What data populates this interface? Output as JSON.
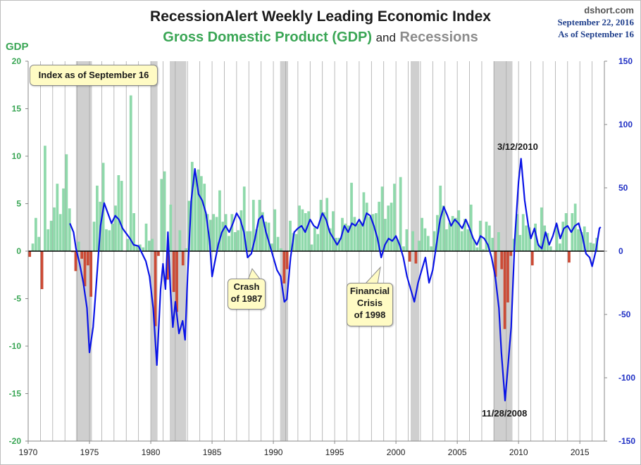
{
  "title": "RecessionAlert Weekly Leading Economic Index",
  "subtitle": {
    "gdp": "Gross Domestic Product (GDP)",
    "and": "and",
    "recessions": "Recessions"
  },
  "source": {
    "site": "dshort.com",
    "date": "September 22, 2016",
    "as_of": "As of September 16"
  },
  "chart_data": {
    "type": "bar",
    "xlabel": "",
    "left_axis": {
      "label": "GDP",
      "range": [
        -20,
        20
      ],
      "ticks": [
        "20",
        "15",
        "10",
        "5",
        "0",
        "-5",
        "-10",
        "-15",
        "-20"
      ]
    },
    "right_axis": {
      "label": "",
      "range": [
        -150,
        150
      ],
      "ticks": [
        "150",
        "100",
        "50",
        "0",
        "-50",
        "-100",
        "-150"
      ]
    },
    "x_range": [
      1970,
      2017
    ],
    "x_ticks": [
      "1970",
      "1975",
      "1980",
      "1985",
      "1990",
      "1995",
      "2000",
      "2005",
      "2010",
      "2015"
    ],
    "grid": "vertical annual lines",
    "recessions": [
      [
        1973.9,
        1975.2
      ],
      [
        1980.0,
        1980.55
      ],
      [
        1981.55,
        1982.9
      ],
      [
        1990.55,
        1991.2
      ],
      [
        2001.2,
        2001.9
      ],
      [
        2007.95,
        2009.5
      ]
    ],
    "gdp_quarterly": [
      -0.6,
      0.8,
      3.5,
      1.5,
      -4.0,
      11.1,
      2.3,
      3.2,
      4.6,
      7.1,
      3.9,
      6.6,
      10.2,
      4.5,
      -0.1,
      -2.1,
      1.0,
      -0.8,
      -3.7,
      -1.5,
      -4.8,
      3.1,
      6.9,
      5.2,
      9.3,
      2.3,
      2.2,
      2.9,
      4.8,
      8.0,
      7.4,
      0.0,
      1.3,
      16.4,
      4.0,
      0.5,
      0.7,
      0.4,
      2.9,
      1.1,
      1.3,
      -7.9,
      -0.5,
      7.6,
      8.4,
      -3.0,
      4.9,
      -4.3,
      -6.4,
      2.2,
      -1.5,
      0.3,
      5.3,
      9.4,
      8.2,
      8.6,
      7.9,
      7.1,
      3.9,
      3.3,
      3.9,
      3.6,
      6.4,
      3.1,
      3.9,
      1.6,
      3.9,
      2.0,
      2.2,
      4.3,
      6.8,
      2.1,
      2.1,
      5.4,
      2.3,
      5.4,
      4.1,
      3.1,
      3.0,
      0.8,
      4.4,
      1.5,
      0.3,
      -3.4,
      -1.9,
      3.2,
      1.9,
      1.8,
      4.8,
      4.4,
      4.0,
      4.2,
      0.7,
      2.5,
      1.8,
      5.4,
      4.1,
      5.6,
      2.4,
      4.2,
      1.4,
      1.4,
      3.5,
      2.9,
      2.7,
      7.2,
      3.6,
      2.9,
      3.1,
      6.2,
      5.1,
      3.6,
      3.9,
      4.0,
      5.2,
      6.8,
      3.4,
      4.8,
      5.1,
      7.1,
      1.2,
      7.8,
      0.5,
      2.3,
      -1.1,
      2.1,
      -1.3,
      1.1,
      3.5,
      2.4,
      1.6,
      0.5,
      2.1,
      3.8,
      6.9,
      4.8,
      2.3,
      3.0,
      3.7,
      3.5,
      4.3,
      2.1,
      3.4,
      2.3,
      4.9,
      1.2,
      0.4,
      3.2,
      0.2,
      3.1,
      2.7,
      1.4,
      -2.7,
      2.0,
      -1.9,
      -8.2,
      -5.4,
      -0.5,
      1.3,
      3.9,
      1.7,
      3.9,
      2.7,
      2.5,
      -1.5,
      2.9,
      0.8,
      4.6,
      2.7,
      1.9,
      0.5,
      0.1,
      2.8,
      0.8,
      3.1,
      4.0,
      -1.2,
      4.0,
      5.0,
      2.3,
      2.0,
      2.6,
      2.0,
      0.9,
      0.8,
      1.4
    ],
    "wlei_points": [
      [
        1973.4,
        22
      ],
      [
        1973.7,
        15
      ],
      [
        1973.9,
        2
      ],
      [
        1974.2,
        -10
      ],
      [
        1974.5,
        -25
      ],
      [
        1974.8,
        -45
      ],
      [
        1975.0,
        -80
      ],
      [
        1975.3,
        -60
      ],
      [
        1975.6,
        -20
      ],
      [
        1975.9,
        20
      ],
      [
        1976.2,
        38
      ],
      [
        1976.5,
        30
      ],
      [
        1976.8,
        22
      ],
      [
        1977.1,
        28
      ],
      [
        1977.4,
        25
      ],
      [
        1977.7,
        18
      ],
      [
        1978.0,
        14
      ],
      [
        1978.3,
        10
      ],
      [
        1978.6,
        5
      ],
      [
        1979.0,
        4
      ],
      [
        1979.3,
        -2
      ],
      [
        1979.6,
        -8
      ],
      [
        1979.9,
        -20
      ],
      [
        1980.2,
        -45
      ],
      [
        1980.5,
        -90
      ],
      [
        1980.8,
        -30
      ],
      [
        1981.0,
        -10
      ],
      [
        1981.2,
        -30
      ],
      [
        1981.4,
        15
      ],
      [
        1981.6,
        -30
      ],
      [
        1981.8,
        -60
      ],
      [
        1982.0,
        -40
      ],
      [
        1982.3,
        -65
      ],
      [
        1982.6,
        -55
      ],
      [
        1982.8,
        -70
      ],
      [
        1983.0,
        -20
      ],
      [
        1983.3,
        40
      ],
      [
        1983.6,
        65
      ],
      [
        1983.9,
        45
      ],
      [
        1984.2,
        40
      ],
      [
        1984.5,
        30
      ],
      [
        1984.8,
        8
      ],
      [
        1985.0,
        -20
      ],
      [
        1985.2,
        -10
      ],
      [
        1985.5,
        5
      ],
      [
        1985.8,
        15
      ],
      [
        1986.1,
        20
      ],
      [
        1986.4,
        15
      ],
      [
        1986.7,
        22
      ],
      [
        1987.0,
        30
      ],
      [
        1987.3,
        25
      ],
      [
        1987.6,
        15
      ],
      [
        1987.9,
        -5
      ],
      [
        1988.2,
        -2
      ],
      [
        1988.5,
        10
      ],
      [
        1988.8,
        25
      ],
      [
        1989.1,
        28
      ],
      [
        1989.4,
        15
      ],
      [
        1989.7,
        5
      ],
      [
        1990.0,
        -5
      ],
      [
        1990.3,
        -15
      ],
      [
        1990.6,
        -20
      ],
      [
        1990.9,
        -40
      ],
      [
        1991.1,
        -38
      ],
      [
        1991.4,
        -5
      ],
      [
        1991.7,
        15
      ],
      [
        1992.0,
        18
      ],
      [
        1992.3,
        20
      ],
      [
        1992.6,
        15
      ],
      [
        1993.0,
        25
      ],
      [
        1993.3,
        20
      ],
      [
        1993.6,
        18
      ],
      [
        1994.0,
        30
      ],
      [
        1994.3,
        25
      ],
      [
        1994.6,
        15
      ],
      [
        1994.9,
        10
      ],
      [
        1995.2,
        5
      ],
      [
        1995.5,
        10
      ],
      [
        1995.8,
        20
      ],
      [
        1996.1,
        15
      ],
      [
        1996.4,
        22
      ],
      [
        1996.7,
        20
      ],
      [
        1997.0,
        25
      ],
      [
        1997.3,
        20
      ],
      [
        1997.6,
        30
      ],
      [
        1997.9,
        28
      ],
      [
        1998.2,
        20
      ],
      [
        1998.5,
        10
      ],
      [
        1998.8,
        -5
      ],
      [
        1999.1,
        5
      ],
      [
        1999.4,
        10
      ],
      [
        1999.7,
        8
      ],
      [
        2000.0,
        12
      ],
      [
        2000.3,
        5
      ],
      [
        2000.6,
        -5
      ],
      [
        2000.9,
        -20
      ],
      [
        2001.2,
        -30
      ],
      [
        2001.5,
        -40
      ],
      [
        2001.8,
        -25
      ],
      [
        2002.1,
        -15
      ],
      [
        2002.4,
        -5
      ],
      [
        2002.7,
        -25
      ],
      [
        2003.0,
        -15
      ],
      [
        2003.3,
        5
      ],
      [
        2003.6,
        25
      ],
      [
        2003.9,
        35
      ],
      [
        2004.2,
        28
      ],
      [
        2004.5,
        20
      ],
      [
        2004.8,
        25
      ],
      [
        2005.1,
        22
      ],
      [
        2005.4,
        18
      ],
      [
        2005.7,
        25
      ],
      [
        2006.0,
        18
      ],
      [
        2006.3,
        10
      ],
      [
        2006.6,
        5
      ],
      [
        2006.9,
        12
      ],
      [
        2007.2,
        10
      ],
      [
        2007.5,
        5
      ],
      [
        2007.8,
        -5
      ],
      [
        2008.1,
        -20
      ],
      [
        2008.4,
        -45
      ],
      [
        2008.6,
        -80
      ],
      [
        2008.9,
        -118
      ],
      [
        2009.1,
        -95
      ],
      [
        2009.4,
        -60
      ],
      [
        2009.7,
        10
      ],
      [
        2010.0,
        55
      ],
      [
        2010.2,
        73
      ],
      [
        2010.5,
        40
      ],
      [
        2010.8,
        20
      ],
      [
        2011.0,
        10
      ],
      [
        2011.3,
        18
      ],
      [
        2011.6,
        5
      ],
      [
        2011.9,
        2
      ],
      [
        2012.2,
        15
      ],
      [
        2012.5,
        5
      ],
      [
        2012.8,
        12
      ],
      [
        2013.1,
        22
      ],
      [
        2013.4,
        10
      ],
      [
        2013.7,
        18
      ],
      [
        2014.0,
        20
      ],
      [
        2014.3,
        15
      ],
      [
        2014.6,
        20
      ],
      [
        2014.9,
        22
      ],
      [
        2015.2,
        12
      ],
      [
        2015.5,
        -2
      ],
      [
        2015.8,
        -5
      ],
      [
        2016.0,
        -12
      ],
      [
        2016.3,
        0
      ],
      [
        2016.6,
        18
      ],
      [
        2016.7,
        19
      ]
    ],
    "annotations": {
      "index_note": "Index as of September 16",
      "peak_2010": "3/12/2010",
      "trough_2008": "11/28/2008",
      "crash_1987": [
        "Crash",
        "of 1987"
      ],
      "crisis_1998": [
        "Financial",
        "Crisis",
        "of 1998"
      ]
    }
  },
  "colors": {
    "gdp_positive": "#8fd9ab",
    "gdp_negative": "#cc4b36",
    "recession": "#cfcfcf",
    "wlei_line": "#0a14e6",
    "left_axis_text": "#3aa655",
    "right_axis_text": "#1f2fc4"
  }
}
